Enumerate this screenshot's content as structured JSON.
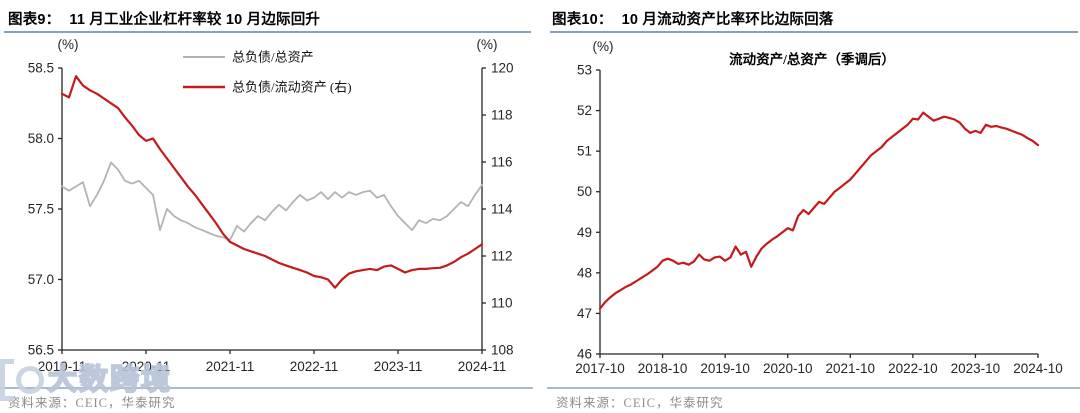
{
  "panels": [
    {
      "figure_label": "图表9：",
      "title": "11 月工业企业杠杆率较 10 月边际回升",
      "source": "资料来源：CEIC，华泰研究"
    },
    {
      "figure_label": "图表10：",
      "title": "10 月流动资产比率环比边际回落",
      "source": "资料来源：CEIC，华泰研究"
    }
  ],
  "watermark": {
    "text": "大数跨境"
  },
  "colors": {
    "red_line": "#C41A1D",
    "gray_line": "#B3B3B3",
    "axis": "#262626",
    "title_rule": "#86A0C3",
    "bottom_rule": "#A6BAD1",
    "source_text": "#8C8C8C"
  },
  "chart_data": [
    {
      "type": "line",
      "title": "",
      "legend_position": "top-center",
      "n_points": 61,
      "x_start": "2019-11",
      "x_end": "2024-11",
      "x_label_ticks": [
        "2019-11",
        "2020-11",
        "2021-11",
        "2022-11",
        "2023-11",
        "2024-11"
      ],
      "x_tick_month_index": [
        0,
        12,
        24,
        36,
        48,
        60
      ],
      "y_left": {
        "unit": "(%)",
        "min": 56.5,
        "max": 58.5,
        "tick_labels": [
          "58.5",
          "58.0",
          "57.5",
          "57.0",
          "56.5"
        ]
      },
      "y_right": {
        "unit": "(%)",
        "min": 108,
        "max": 120,
        "tick_labels": [
          "120",
          "118",
          "116",
          "114",
          "112",
          "110",
          "108"
        ]
      },
      "legend": [
        {
          "label": "总负债/总资产",
          "color_key": "gray_line"
        },
        {
          "label": "总负债/流动资产 (右)",
          "color_key": "red_line"
        }
      ],
      "series": [
        {
          "name": "总负债/总资产",
          "data_name": "series-total-debt-to-total-assets",
          "axis": "left",
          "color_key": "gray_line",
          "width": 1.8,
          "values": [
            57.66,
            57.63,
            57.66,
            57.69,
            57.52,
            57.6,
            57.7,
            57.83,
            57.78,
            57.7,
            57.68,
            57.7,
            57.65,
            57.6,
            57.35,
            57.5,
            57.45,
            57.42,
            57.4,
            57.37,
            57.35,
            57.33,
            57.31,
            57.3,
            57.28,
            57.38,
            57.34,
            57.4,
            57.45,
            57.42,
            57.48,
            57.53,
            57.49,
            57.55,
            57.6,
            57.56,
            57.58,
            57.62,
            57.57,
            57.62,
            57.58,
            57.62,
            57.6,
            57.62,
            57.63,
            57.58,
            57.6,
            57.52,
            57.45,
            57.4,
            57.35,
            57.42,
            57.4,
            57.43,
            57.42,
            57.45,
            57.5,
            57.55,
            57.52,
            57.6,
            57.67
          ]
        },
        {
          "name": "总负债/流动资产 (右)",
          "data_name": "series-total-debt-to-current-assets",
          "axis": "right",
          "color_key": "red_line",
          "width": 2.2,
          "values": [
            118.9,
            118.75,
            119.65,
            119.25,
            119.05,
            118.9,
            118.7,
            118.5,
            118.3,
            117.9,
            117.55,
            117.15,
            116.9,
            117.0,
            116.55,
            116.15,
            115.75,
            115.35,
            114.95,
            114.6,
            114.2,
            113.8,
            113.4,
            112.95,
            112.6,
            112.45,
            112.3,
            112.2,
            112.1,
            112.0,
            111.85,
            111.7,
            111.6,
            111.5,
            111.4,
            111.3,
            111.15,
            111.1,
            111.0,
            110.65,
            111.0,
            111.25,
            111.35,
            111.4,
            111.45,
            111.4,
            111.55,
            111.6,
            111.45,
            111.3,
            111.4,
            111.45,
            111.45,
            111.48,
            111.5,
            111.6,
            111.75,
            111.95,
            112.1,
            112.3,
            112.5
          ]
        }
      ]
    },
    {
      "type": "line",
      "title": "流动资产/总资产（季调后）",
      "n_points": 85,
      "x_start": "2017-10",
      "x_end": "2024-10",
      "x_label_ticks": [
        "2017-10",
        "2018-10",
        "2019-10",
        "2020-10",
        "2021-10",
        "2022-10",
        "2023-10",
        "2024-10"
      ],
      "x_tick_month_index": [
        0,
        12,
        24,
        36,
        48,
        60,
        72,
        84
      ],
      "y_left": {
        "unit": "(%)",
        "min": 46,
        "max": 53,
        "tick_labels": [
          "53",
          "52",
          "51",
          "50",
          "49",
          "48",
          "47",
          "46"
        ]
      },
      "series": [
        {
          "name": "流动资产/总资产（季调后）",
          "data_name": "series-current-assets-ratio",
          "axis": "left",
          "color_key": "red_line",
          "width": 2.2,
          "values": [
            47.12,
            47.28,
            47.4,
            47.5,
            47.58,
            47.66,
            47.72,
            47.8,
            47.88,
            47.96,
            48.05,
            48.15,
            48.3,
            48.35,
            48.3,
            48.22,
            48.25,
            48.2,
            48.28,
            48.45,
            48.33,
            48.3,
            48.38,
            48.4,
            48.3,
            48.38,
            48.65,
            48.45,
            48.52,
            48.15,
            48.4,
            48.6,
            48.72,
            48.82,
            48.9,
            49.0,
            49.1,
            49.05,
            49.4,
            49.55,
            49.45,
            49.6,
            49.75,
            49.7,
            49.85,
            50.0,
            50.1,
            50.2,
            50.3,
            50.45,
            50.6,
            50.75,
            50.9,
            51.0,
            51.1,
            51.25,
            51.35,
            51.45,
            51.55,
            51.65,
            51.8,
            51.78,
            51.95,
            51.85,
            51.75,
            51.8,
            51.85,
            51.82,
            51.78,
            51.7,
            51.55,
            51.45,
            51.5,
            51.45,
            51.65,
            51.6,
            51.62,
            51.58,
            51.55,
            51.5,
            51.45,
            51.4,
            51.32,
            51.25,
            51.15
          ]
        }
      ]
    }
  ]
}
